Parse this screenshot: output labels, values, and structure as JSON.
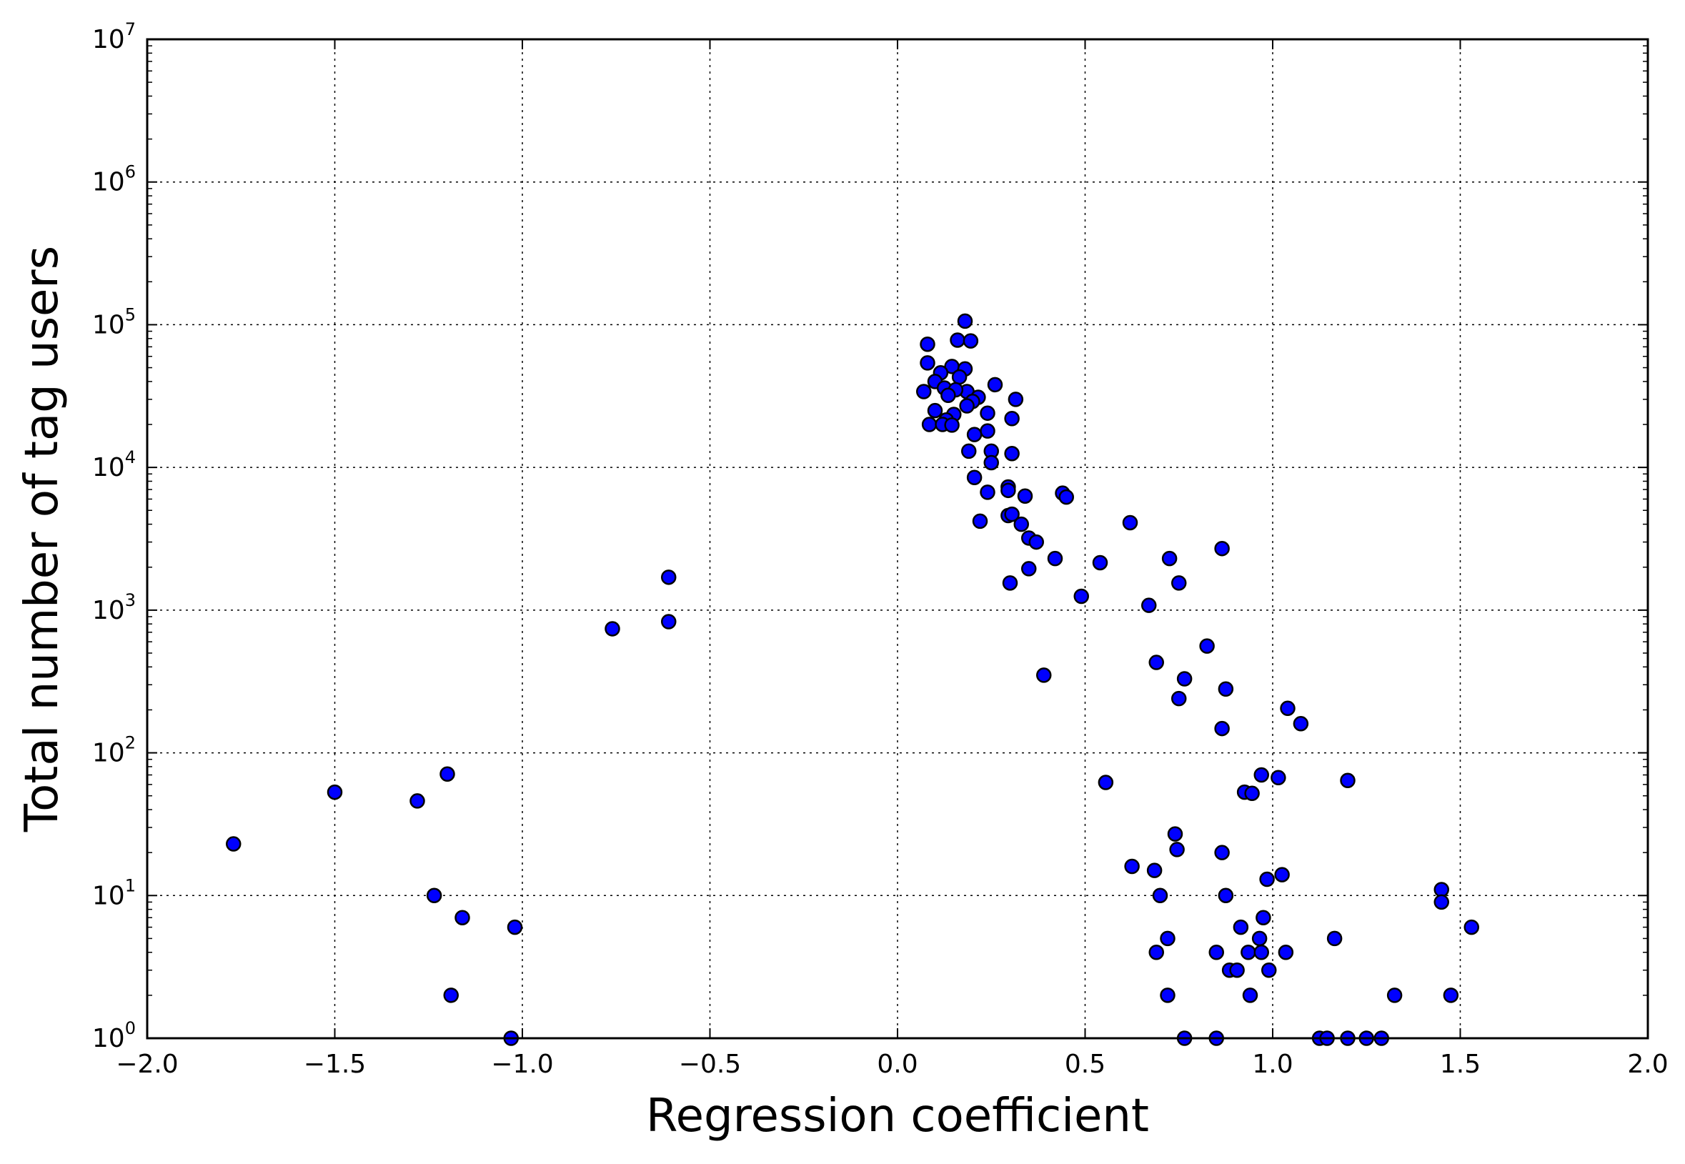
{
  "chart_data": {
    "type": "scatter",
    "title": "",
    "xlabel": "Regression coefficient",
    "ylabel": "Total number of tag users",
    "xlim": [
      -2.0,
      2.0
    ],
    "ylim": [
      1,
      10000000
    ],
    "y_scale": "log",
    "grid": true,
    "legend": "none",
    "x_ticks": [
      -2.0,
      -1.5,
      -1.0,
      -0.5,
      0.0,
      0.5,
      1.0,
      1.5,
      2.0
    ],
    "x_tick_labels": [
      "−2.0",
      "−1.5",
      "−1.0",
      "−0.5",
      "0.0",
      "0.5",
      "1.0",
      "1.5",
      "2.0"
    ],
    "y_ticks": [
      1,
      10,
      100,
      1000,
      10000,
      100000,
      1000000,
      10000000
    ],
    "y_tick_bases": [
      "10",
      "10",
      "10",
      "10",
      "10",
      "10",
      "10",
      "10"
    ],
    "y_tick_exponents": [
      "0",
      "1",
      "2",
      "3",
      "4",
      "5",
      "6",
      "7"
    ],
    "marker_color": "#0000ff",
    "marker_edge_color": "#000000",
    "points": [
      [
        0.18,
        106000
      ],
      [
        0.08,
        73000
      ],
      [
        0.16,
        78000
      ],
      [
        0.195,
        77000
      ],
      [
        0.08,
        54000
      ],
      [
        0.145,
        51000
      ],
      [
        0.18,
        49000
      ],
      [
        0.115,
        46000
      ],
      [
        0.165,
        43000
      ],
      [
        0.1,
        40000
      ],
      [
        0.125,
        36000
      ],
      [
        0.26,
        38000
      ],
      [
        0.07,
        34000
      ],
      [
        0.185,
        34000
      ],
      [
        0.155,
        35000
      ],
      [
        0.135,
        32000
      ],
      [
        0.215,
        31000
      ],
      [
        0.2,
        29000
      ],
      [
        0.315,
        30000
      ],
      [
        0.185,
        27000
      ],
      [
        0.1,
        25000
      ],
      [
        0.15,
        23500
      ],
      [
        0.305,
        22000
      ],
      [
        0.24,
        24000
      ],
      [
        0.13,
        21500
      ],
      [
        0.085,
        20000
      ],
      [
        0.12,
        20000
      ],
      [
        0.145,
        19800
      ],
      [
        0.24,
        18000
      ],
      [
        0.205,
        17000
      ],
      [
        0.19,
        13000
      ],
      [
        0.25,
        13000
      ],
      [
        0.305,
        12500
      ],
      [
        0.25,
        10800
      ],
      [
        0.205,
        8500
      ],
      [
        0.295,
        7300
      ],
      [
        0.295,
        6900
      ],
      [
        0.24,
        6700
      ],
      [
        0.34,
        6300
      ],
      [
        0.44,
        6600
      ],
      [
        0.45,
        6200
      ],
      [
        0.295,
        4600
      ],
      [
        0.305,
        4700
      ],
      [
        0.22,
        4200
      ],
      [
        0.33,
        4000
      ],
      [
        0.62,
        4100
      ],
      [
        0.35,
        3200
      ],
      [
        0.37,
        3000
      ],
      [
        0.865,
        2700
      ],
      [
        0.42,
        2300
      ],
      [
        0.725,
        2300
      ],
      [
        0.54,
        2150
      ],
      [
        0.35,
        1950
      ],
      [
        0.3,
        1550
      ],
      [
        0.75,
        1550
      ],
      [
        0.49,
        1250
      ],
      [
        0.67,
        1080
      ],
      [
        -0.61,
        1700
      ],
      [
        -0.61,
        830
      ],
      [
        -0.76,
        740
      ],
      [
        0.825,
        560
      ],
      [
        0.69,
        430
      ],
      [
        0.39,
        350
      ],
      [
        0.765,
        330
      ],
      [
        0.875,
        280
      ],
      [
        0.75,
        240
      ],
      [
        1.04,
        205
      ],
      [
        1.075,
        160
      ],
      [
        0.865,
        148
      ],
      [
        -1.2,
        71
      ],
      [
        0.97,
        70
      ],
      [
        1.015,
        67
      ],
      [
        0.555,
        62
      ],
      [
        1.2,
        64
      ],
      [
        -1.5,
        53
      ],
      [
        0.925,
        53
      ],
      [
        0.945,
        52
      ],
      [
        -1.28,
        46
      ],
      [
        0.74,
        27
      ],
      [
        -1.77,
        23
      ],
      [
        0.745,
        21
      ],
      [
        0.865,
        20
      ],
      [
        0.625,
        16
      ],
      [
        0.685,
        15
      ],
      [
        1.025,
        14
      ],
      [
        0.985,
        13
      ],
      [
        1.45,
        11
      ],
      [
        -1.235,
        10
      ],
      [
        0.7,
        10
      ],
      [
        0.875,
        10
      ],
      [
        1.45,
        9
      ],
      [
        -1.16,
        7
      ],
      [
        0.975,
        7
      ],
      [
        -1.02,
        6
      ],
      [
        0.915,
        6
      ],
      [
        1.53,
        6
      ],
      [
        0.72,
        5
      ],
      [
        0.965,
        5
      ],
      [
        1.165,
        5
      ],
      [
        0.69,
        4
      ],
      [
        0.85,
        4
      ],
      [
        0.935,
        4
      ],
      [
        0.97,
        4
      ],
      [
        1.035,
        4
      ],
      [
        0.885,
        3
      ],
      [
        0.905,
        3
      ],
      [
        0.99,
        3
      ],
      [
        -1.19,
        2
      ],
      [
        0.72,
        2
      ],
      [
        0.94,
        2
      ],
      [
        1.325,
        2
      ],
      [
        1.475,
        2
      ],
      [
        -1.03,
        1
      ],
      [
        0.765,
        1
      ],
      [
        0.85,
        1
      ],
      [
        1.125,
        1
      ],
      [
        1.145,
        1
      ],
      [
        1.2,
        1
      ],
      [
        1.25,
        1
      ],
      [
        1.29,
        1
      ]
    ]
  }
}
